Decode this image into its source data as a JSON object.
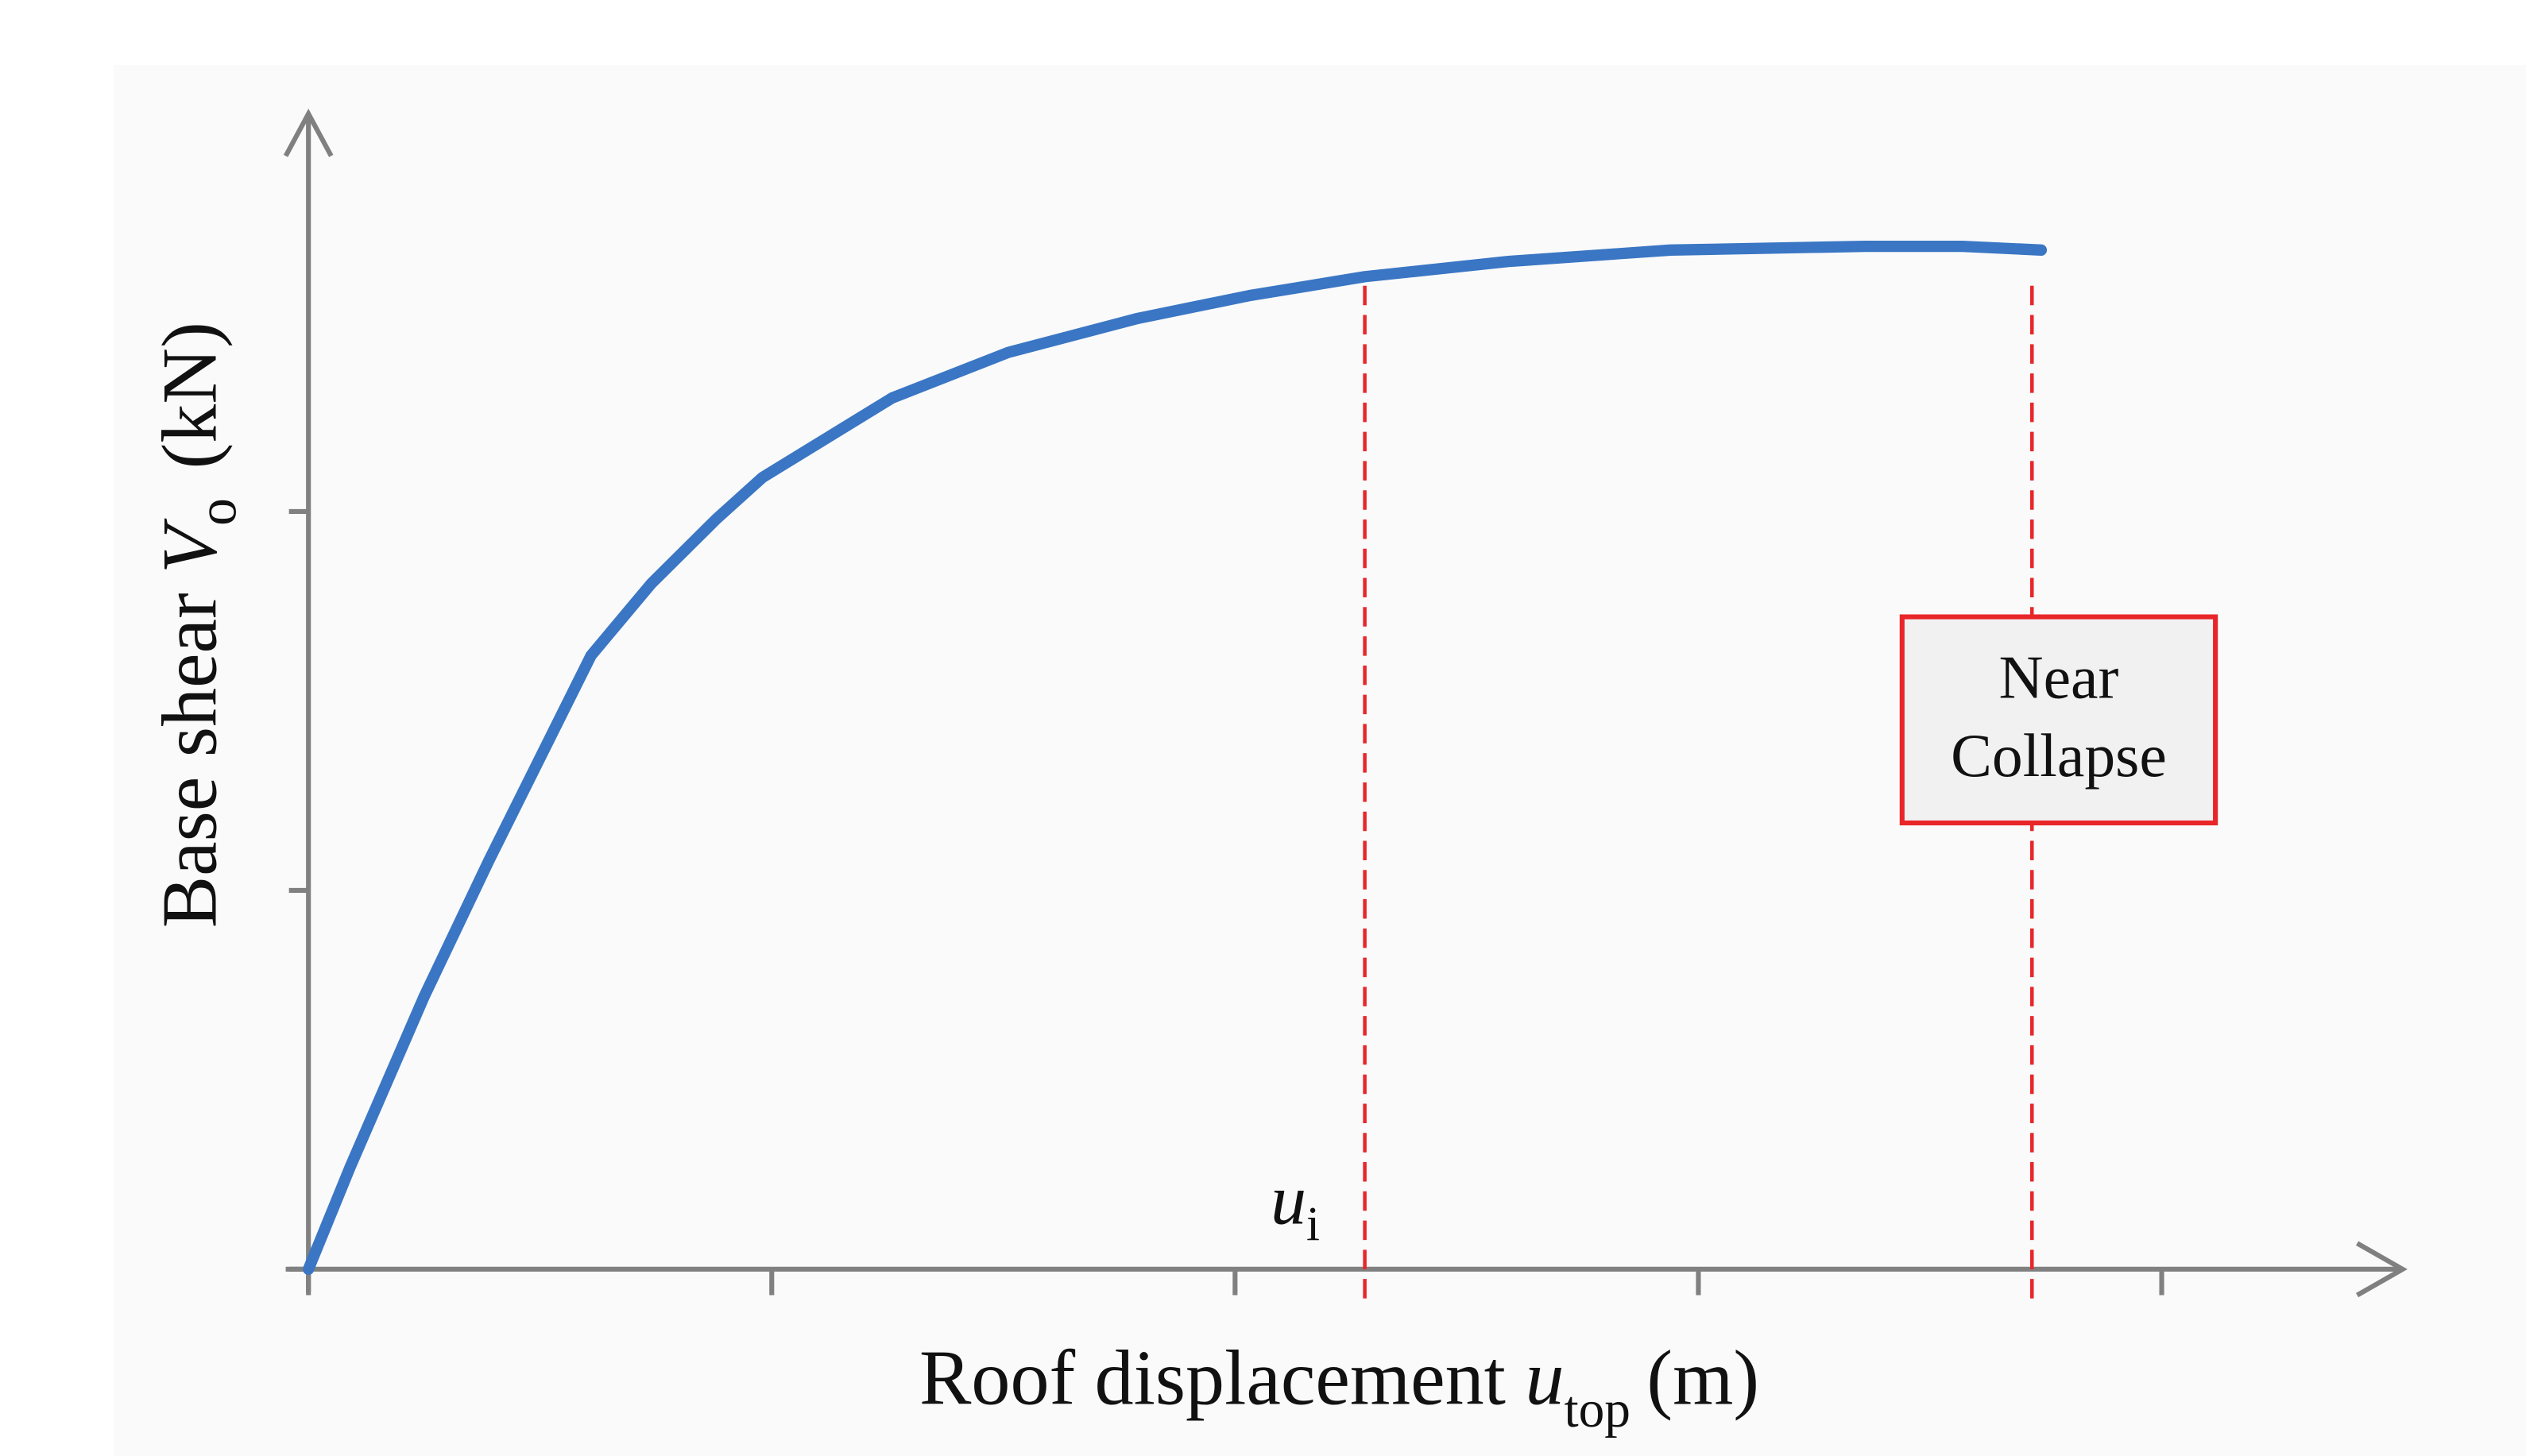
{
  "chart_data": {
    "type": "line",
    "x_label": {
      "text": "Roof displacement ",
      "symbol": "u",
      "subscript": "top",
      "unit": "(m)"
    },
    "y_label": {
      "text": "Base shear ",
      "symbol": "V",
      "subscript": "o",
      "unit": "(kN)"
    },
    "x": [
      0,
      0.09,
      0.25,
      0.39,
      0.61,
      0.74,
      0.88,
      0.98,
      1.26,
      1.51,
      1.79,
      2.03,
      2.28,
      2.59,
      2.94,
      3.36,
      3.57,
      3.74
    ],
    "values": [
      0,
      0.27,
      0.72,
      1.08,
      1.62,
      1.81,
      1.98,
      2.09,
      2.3,
      2.42,
      2.51,
      2.57,
      2.62,
      2.66,
      2.69,
      2.7,
      2.7,
      2.69
    ],
    "color": "#3a76c4",
    "xlim": [
      0,
      4.52
    ],
    "ylim": [
      0,
      3.05
    ],
    "xticks": [
      0,
      1,
      2,
      3,
      4
    ],
    "yticks": [
      0,
      1,
      2
    ],
    "markers": [
      {
        "x": 2.28,
        "symbol": "u",
        "subscript": "i",
        "color": "#e8262a"
      },
      {
        "x": 3.72,
        "lines": [
          "Near",
          "Collapse"
        ],
        "color": "#e8262a"
      }
    ]
  }
}
